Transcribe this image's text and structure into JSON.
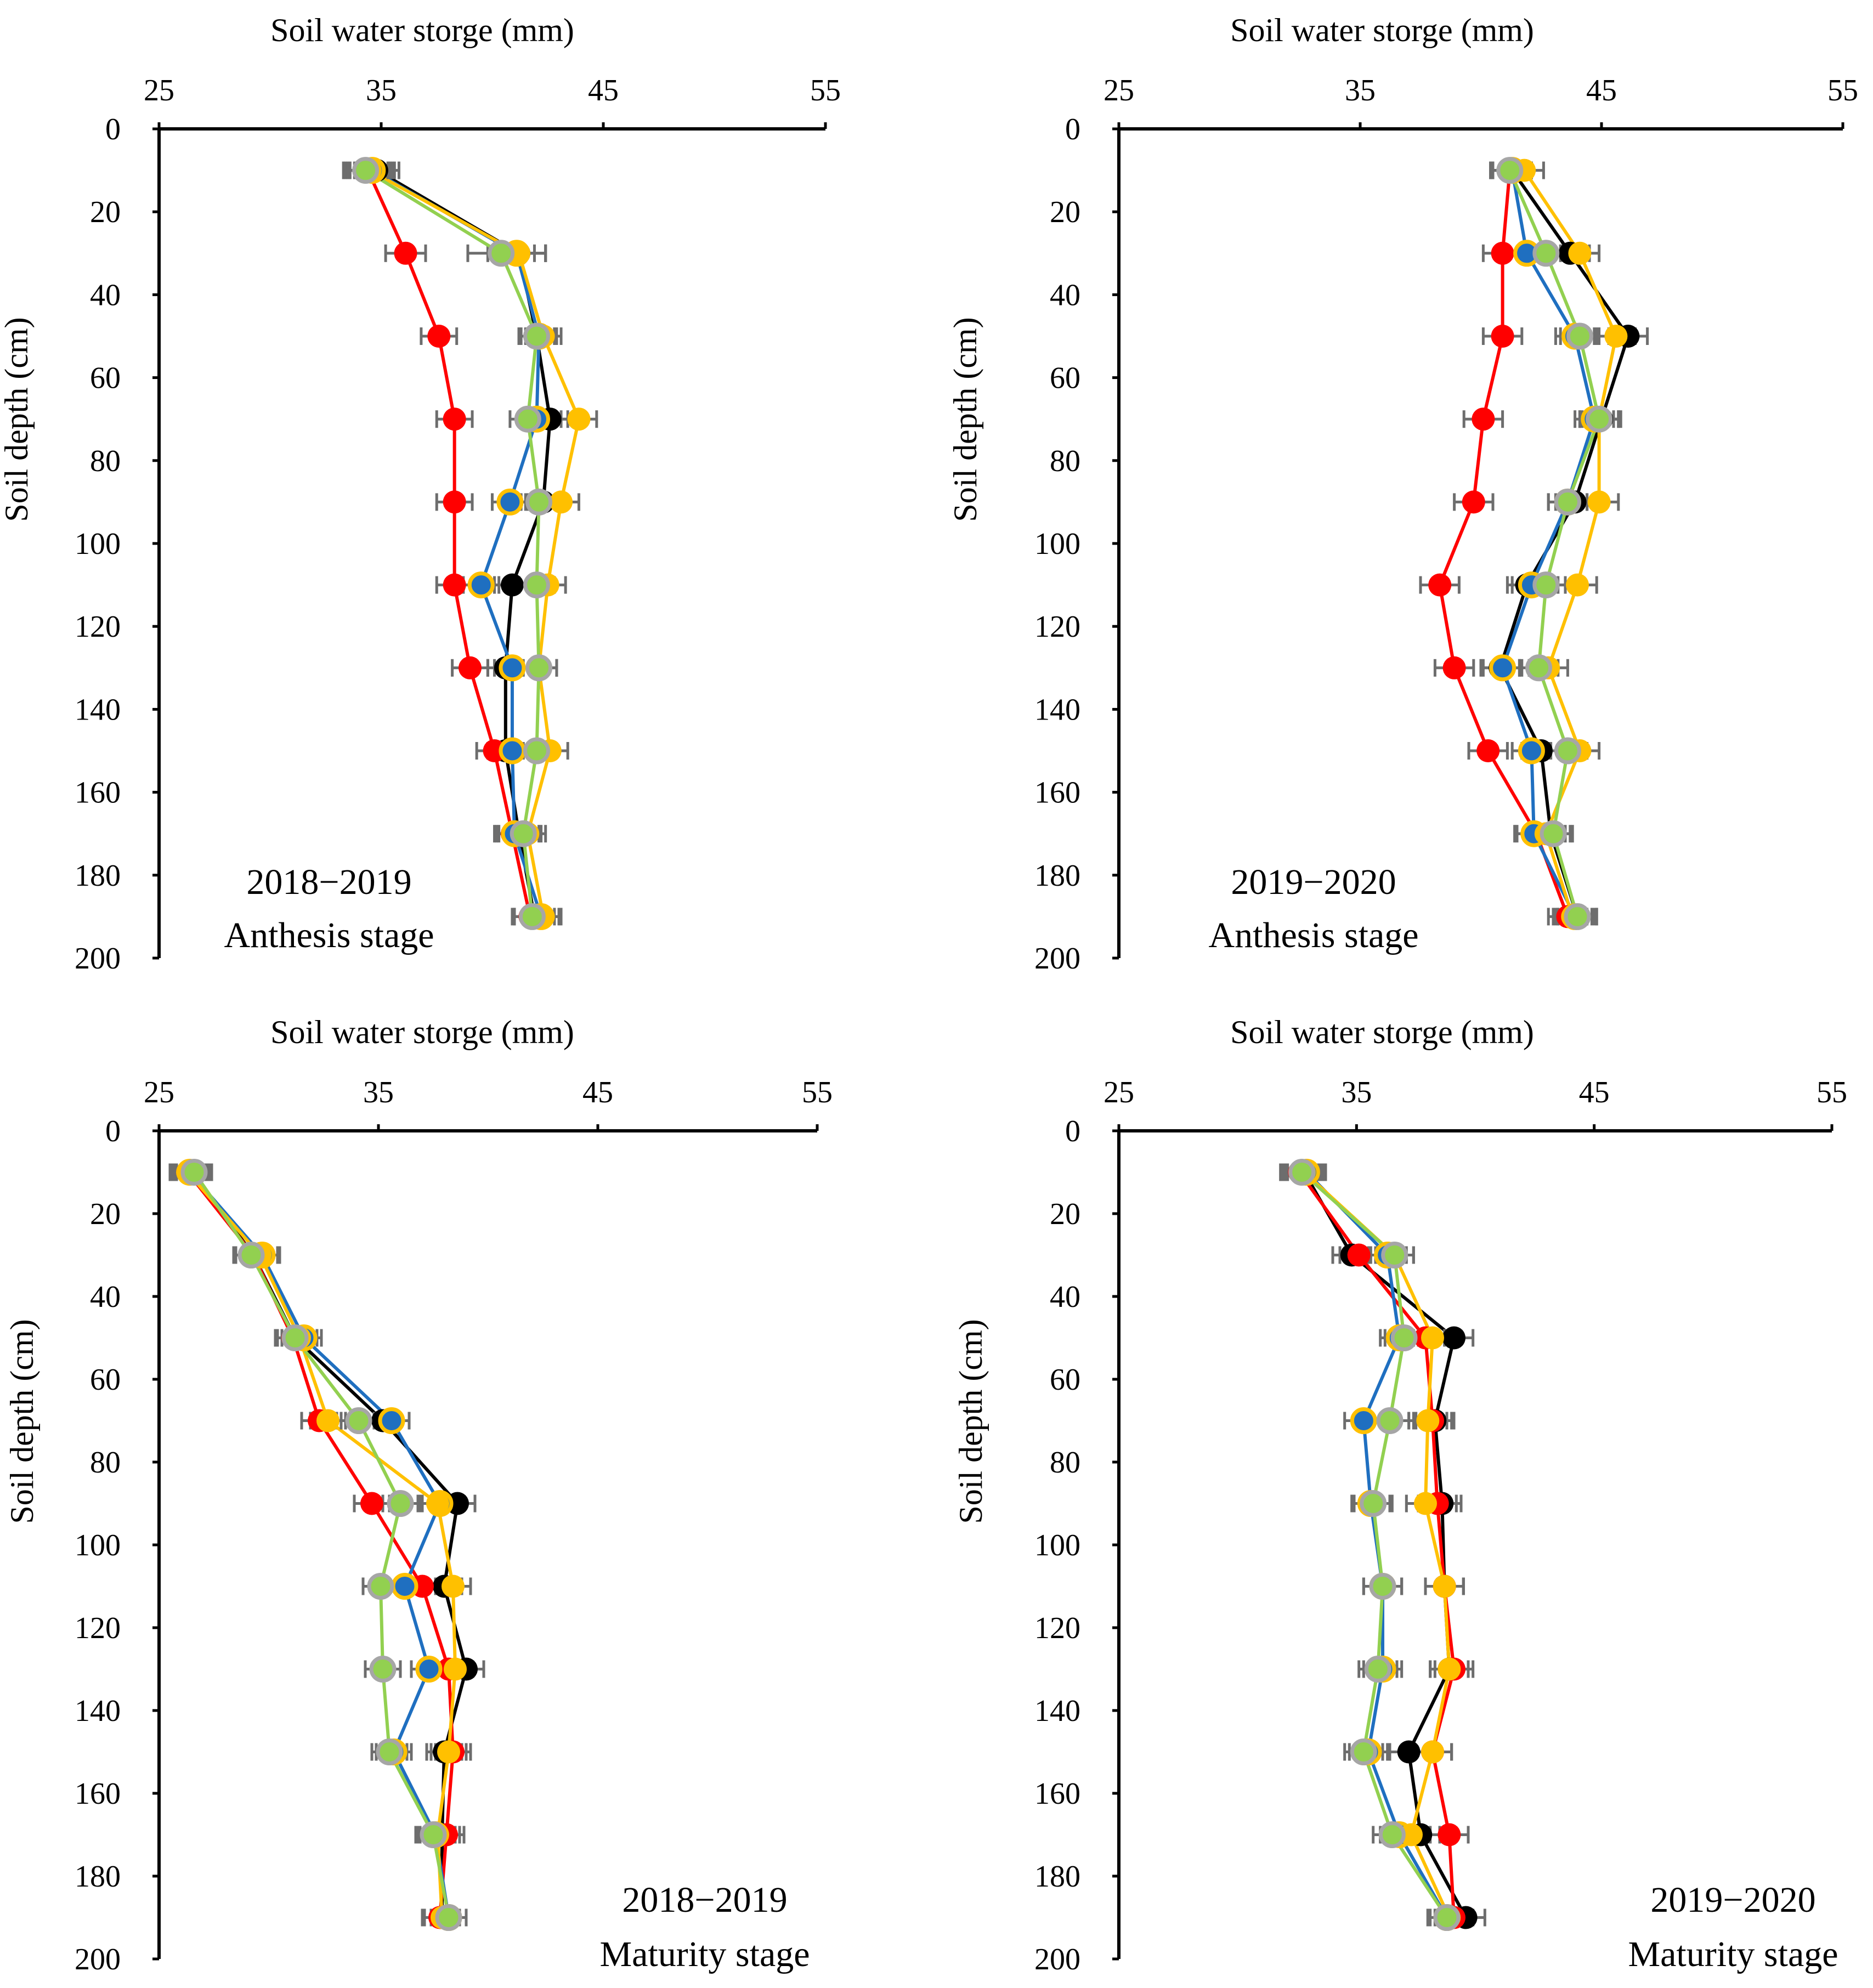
{
  "chart_data": [
    {
      "type": "line",
      "title": "2018−2019",
      "subtitle": "Anthesis stage",
      "xlabel": "Soil water storge (mm)",
      "ylabel": "Soil depth (cm)",
      "xlim": [
        25,
        55
      ],
      "ylim": [
        0,
        200
      ],
      "xticks": [
        "25",
        "35",
        "45",
        "55"
      ],
      "yticks": [
        "0",
        "20",
        "40",
        "60",
        "80",
        "100",
        "120",
        "140",
        "160",
        "180",
        "200"
      ],
      "depths": [
        10,
        30,
        50,
        70,
        90,
        110,
        130,
        150,
        170,
        190
      ],
      "legend": "none",
      "label_position": "bottom-left",
      "series": [
        {
          "name": "Black",
          "color": "#000000",
          "values": [
            34.8,
            41.2,
            42.0,
            42.6,
            42.3,
            40.9,
            40.6,
            40.6,
            41.2,
            41.9
          ],
          "err": [
            1.0,
            1.2,
            0.8,
            0.8,
            0.8,
            0.8,
            0.8,
            0.8,
            0.9,
            0.9
          ]
        },
        {
          "name": "Red",
          "color": "#ff0000",
          "values": [
            34.4,
            36.1,
            37.6,
            38.3,
            38.3,
            38.3,
            39.0,
            40.1,
            40.9,
            41.7
          ],
          "err": [
            1.0,
            0.9,
            0.8,
            0.8,
            0.8,
            0.8,
            0.8,
            0.8,
            0.8,
            0.8
          ]
        },
        {
          "name": "Blue",
          "color": "#1f6fc0",
          "values": [
            34.6,
            41.1,
            42.1,
            42.0,
            40.8,
            39.5,
            40.9,
            40.9,
            41.0,
            42.2
          ],
          "err": [
            1.0,
            1.3,
            0.8,
            0.8,
            0.8,
            0.8,
            0.8,
            0.8,
            0.8,
            0.8
          ]
        },
        {
          "name": "Yellow",
          "color": "#ffc000",
          "values": [
            34.5,
            41.2,
            42.3,
            43.9,
            43.1,
            42.5,
            42.1,
            42.6,
            41.6,
            42.3
          ],
          "err": [
            1.0,
            1.2,
            0.8,
            0.8,
            0.8,
            0.8,
            0.8,
            0.8,
            0.8,
            0.8
          ]
        },
        {
          "name": "Green",
          "color": "#92d050",
          "values": [
            34.3,
            40.4,
            42.0,
            41.6,
            42.1,
            42.0,
            42.1,
            42.0,
            41.4,
            41.8
          ],
          "err": [
            1.0,
            1.5,
            0.8,
            0.8,
            0.8,
            0.8,
            0.8,
            0.8,
            0.8,
            0.8
          ]
        }
      ]
    },
    {
      "type": "line",
      "title": "2019−2020",
      "subtitle": "Anthesis stage",
      "xlabel": "Soil water storge (mm)",
      "ylabel": "Soil depth (cm)",
      "xlim": [
        25,
        55
      ],
      "ylim": [
        0,
        200
      ],
      "xticks": [
        "25",
        "35",
        "45",
        "55"
      ],
      "yticks": [
        "0",
        "20",
        "40",
        "60",
        "80",
        "100",
        "120",
        "140",
        "160",
        "180",
        "200"
      ],
      "depths": [
        10,
        30,
        50,
        70,
        90,
        110,
        130,
        150,
        170,
        190
      ],
      "legend": "none",
      "label_position": "bottom-left",
      "series": [
        {
          "name": "Black",
          "color": "#000000",
          "values": [
            41.3,
            43.7,
            46.1,
            45.0,
            43.9,
            41.9,
            40.8,
            42.5,
            42.9,
            44.0
          ],
          "err": [
            0.8,
            0.8,
            0.8,
            0.8,
            0.8,
            0.8,
            0.8,
            0.8,
            0.8,
            0.8
          ]
        },
        {
          "name": "Red",
          "color": "#ff0000",
          "values": [
            41.2,
            40.9,
            40.9,
            40.1,
            39.7,
            38.3,
            38.9,
            40.3,
            42.3,
            43.6
          ],
          "err": [
            0.8,
            0.8,
            0.8,
            0.8,
            0.8,
            0.8,
            0.8,
            0.8,
            0.8,
            0.8
          ]
        },
        {
          "name": "Blue",
          "color": "#1f6fc0",
          "values": [
            41.3,
            41.9,
            43.9,
            44.7,
            43.6,
            42.1,
            40.9,
            42.1,
            42.2,
            43.9
          ],
          "err": [
            0.8,
            0.8,
            0.8,
            0.8,
            0.8,
            0.8,
            0.8,
            0.8,
            0.8,
            0.8
          ]
        },
        {
          "name": "Yellow",
          "color": "#ffc000",
          "values": [
            41.8,
            44.1,
            45.6,
            44.9,
            44.9,
            44.0,
            42.8,
            44.1,
            42.7,
            43.8
          ],
          "err": [
            0.8,
            0.8,
            0.8,
            0.8,
            0.8,
            0.8,
            0.8,
            0.8,
            0.8,
            0.8
          ]
        },
        {
          "name": "Green",
          "color": "#92d050",
          "values": [
            41.2,
            42.7,
            44.1,
            44.9,
            43.6,
            42.7,
            42.4,
            43.6,
            43.0,
            44.0
          ],
          "err": [
            0.8,
            0.8,
            0.8,
            0.8,
            0.8,
            0.8,
            0.8,
            0.8,
            0.8,
            0.8
          ]
        }
      ]
    },
    {
      "type": "line",
      "title": "2018−2019",
      "subtitle": "Maturity stage",
      "xlabel": "Soil water storge (mm)",
      "ylabel": "Soil depth (cm)",
      "xlim": [
        25,
        55
      ],
      "ylim": [
        0,
        200
      ],
      "xticks": [
        "25",
        "35",
        "45",
        "55"
      ],
      "yticks": [
        "0",
        "20",
        "40",
        "60",
        "80",
        "100",
        "120",
        "140",
        "160",
        "180",
        "200"
      ],
      "depths": [
        10,
        30,
        50,
        70,
        90,
        110,
        130,
        150,
        170,
        190
      ],
      "legend": "none",
      "label_position": "bottom-right",
      "series": [
        {
          "name": "Black",
          "color": "#000000",
          "values": [
            26.5,
            29.3,
            31.2,
            35.2,
            38.6,
            38.0,
            39.0,
            38.0,
            37.9,
            37.9
          ],
          "err": [
            0.8,
            0.8,
            0.8,
            0.8,
            0.8,
            0.8,
            0.8,
            0.8,
            0.8,
            0.8
          ]
        },
        {
          "name": "Red",
          "color": "#ff0000",
          "values": [
            26.3,
            29.3,
            31.1,
            32.3,
            34.7,
            37.0,
            38.2,
            38.4,
            38.1,
            37.8
          ],
          "err": [
            0.8,
            0.8,
            0.8,
            0.8,
            0.8,
            0.8,
            0.8,
            0.8,
            0.8,
            0.8
          ]
        },
        {
          "name": "Blue",
          "color": "#1f6fc0",
          "values": [
            26.4,
            29.7,
            31.6,
            35.6,
            37.8,
            36.2,
            37.3,
            35.7,
            37.6,
            38.2
          ],
          "err": [
            0.8,
            0.8,
            0.8,
            0.8,
            0.8,
            0.8,
            0.8,
            0.8,
            0.8,
            0.8
          ]
        },
        {
          "name": "Yellow",
          "color": "#ffc000",
          "values": [
            26.3,
            29.6,
            31.4,
            32.7,
            37.7,
            38.4,
            38.5,
            38.2,
            37.7,
            37.9
          ],
          "err": [
            0.8,
            0.8,
            0.8,
            0.8,
            0.8,
            0.8,
            0.8,
            0.8,
            0.8,
            0.8
          ]
        },
        {
          "name": "Green",
          "color": "#92d050",
          "values": [
            26.6,
            29.2,
            31.2,
            34.1,
            36.0,
            35.1,
            35.2,
            35.5,
            37.5,
            38.2
          ],
          "err": [
            0.8,
            0.8,
            0.8,
            0.8,
            0.8,
            0.8,
            0.8,
            0.8,
            0.8,
            0.8
          ]
        }
      ]
    },
    {
      "type": "line",
      "title": "2019−2020",
      "subtitle": "Maturity stage",
      "xlabel": "Soil water storge (mm)",
      "ylabel": "Soil depth (cm)",
      "xlim": [
        25,
        55
      ],
      "ylim": [
        0,
        200
      ],
      "xticks": [
        "25",
        "35",
        "45",
        "55"
      ],
      "yticks": [
        "0",
        "20",
        "40",
        "60",
        "80",
        "100",
        "120",
        "140",
        "160",
        "180",
        "200"
      ],
      "depths": [
        10,
        30,
        50,
        70,
        90,
        110,
        130,
        150,
        170,
        190
      ],
      "legend": "none",
      "label_position": "bottom-right",
      "series": [
        {
          "name": "Black",
          "color": "#000000",
          "values": [
            32.8,
            34.8,
            39.1,
            38.3,
            38.6,
            38.7,
            38.9,
            37.2,
            37.7,
            39.6
          ],
          "err": [
            0.8,
            0.8,
            0.8,
            0.8,
            0.8,
            0.8,
            0.8,
            0.8,
            0.8,
            0.8
          ]
        },
        {
          "name": "Red",
          "color": "#ff0000",
          "values": [
            32.6,
            35.1,
            37.9,
            38.2,
            38.4,
            38.7,
            39.1,
            38.2,
            38.9,
            39.1
          ],
          "err": [
            0.8,
            0.8,
            0.8,
            0.8,
            0.8,
            0.8,
            0.8,
            0.8,
            0.8,
            0.8
          ]
        },
        {
          "name": "Blue",
          "color": "#1f6fc0",
          "values": [
            32.9,
            36.3,
            36.8,
            35.3,
            35.6,
            36.1,
            36.1,
            35.5,
            36.8,
            38.8
          ],
          "err": [
            0.8,
            0.8,
            0.8,
            0.8,
            0.8,
            0.8,
            0.8,
            0.8,
            0.8,
            0.8
          ]
        },
        {
          "name": "Yellow",
          "color": "#ffc000",
          "values": [
            32.8,
            36.6,
            38.2,
            38.0,
            37.9,
            38.7,
            38.9,
            38.2,
            37.3,
            38.9
          ],
          "err": [
            0.8,
            0.8,
            0.8,
            0.8,
            0.8,
            0.8,
            0.8,
            0.8,
            0.8,
            0.8
          ]
        },
        {
          "name": "Green",
          "color": "#92d050",
          "values": [
            32.7,
            36.6,
            37.0,
            36.4,
            35.7,
            36.1,
            35.9,
            35.3,
            36.5,
            38.8
          ],
          "err": [
            0.8,
            0.8,
            0.8,
            0.8,
            0.8,
            0.8,
            0.8,
            0.8,
            0.8,
            0.8
          ]
        }
      ]
    }
  ],
  "colors": {
    "axis": "#000000",
    "errorbar": "#6d6d6d",
    "marker_outline_blue": "#ffc000",
    "marker_outline_green": "#a6a6a6"
  }
}
